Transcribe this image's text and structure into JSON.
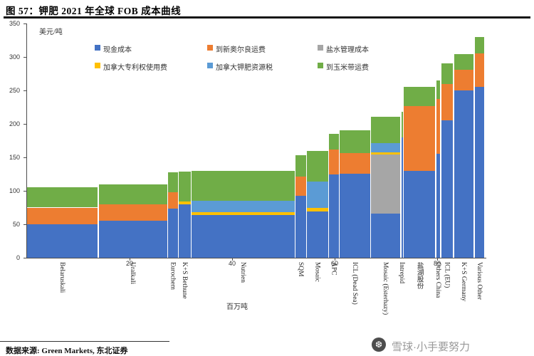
{
  "page": {
    "title": "图 57：钾肥 2021 年全球 FOB 成本曲线",
    "source_note": "数据来源: Green Markets, 东北证券",
    "watermark_text": "雪球·小手要努力",
    "watermark_icon": "snowball-logo"
  },
  "chart_data": {
    "type": "bar",
    "subtype": "stacked-variable-width-cost-curve",
    "title": "钾肥2021年全球FOB成本曲线",
    "ylabel": "美元/吨",
    "xlabel": "百万吨",
    "ylim": [
      0,
      350
    ],
    "yticks": [
      0,
      50,
      100,
      150,
      200,
      250,
      300,
      350
    ],
    "xticks": [
      20,
      40,
      60,
      80
    ],
    "grid": false,
    "legend_position": "top-center",
    "legend": [
      {
        "id": "cash",
        "label": "现金成本",
        "color": "#4472C4"
      },
      {
        "id": "nola",
        "label": "到新奥尔良运费",
        "color": "#ED7D31"
      },
      {
        "id": "brine",
        "label": "盐水管理成本",
        "color": "#A6A6A6"
      },
      {
        "id": "royalty",
        "label": "加拿大专利权使用费",
        "color": "#FFC000"
      },
      {
        "id": "tax",
        "label": "加拿大钾肥资源税",
        "color": "#5B9BD5"
      },
      {
        "id": "corn",
        "label": "到玉米带运费",
        "color": "#70AD47"
      }
    ],
    "bars": [
      {
        "label": "Belaruskali",
        "width_mt": 14.0,
        "total": 105,
        "segments": [
          {
            "type": "cash",
            "value": 50
          },
          {
            "type": "nola",
            "value": 25
          },
          {
            "type": "corn",
            "value": 30
          }
        ]
      },
      {
        "label": "Uralkali",
        "width_mt": 13.5,
        "total": 110,
        "segments": [
          {
            "type": "cash",
            "value": 55
          },
          {
            "type": "nola",
            "value": 25
          },
          {
            "type": "corn",
            "value": 30
          }
        ]
      },
      {
        "label": "Eurochem",
        "width_mt": 2.1,
        "total": 128,
        "segments": [
          {
            "type": "cash",
            "value": 73
          },
          {
            "type": "nola",
            "value": 25
          },
          {
            "type": "corn",
            "value": 30
          }
        ]
      },
      {
        "label": "K+S Bethune",
        "width_mt": 2.5,
        "total": 129,
        "segments": [
          {
            "type": "cash",
            "value": 80
          },
          {
            "type": "royalty",
            "value": 4
          },
          {
            "type": "corn",
            "value": 45
          }
        ]
      },
      {
        "label": "Nutrien",
        "width_mt": 20.3,
        "total": 130,
        "segments": [
          {
            "type": "cash",
            "value": 64
          },
          {
            "type": "royalty",
            "value": 4
          },
          {
            "type": "tax",
            "value": 17
          },
          {
            "type": "corn",
            "value": 45
          }
        ]
      },
      {
        "label": "SQM",
        "width_mt": 2.2,
        "total": 153,
        "segments": [
          {
            "type": "cash",
            "value": 93
          },
          {
            "type": "nola",
            "value": 28
          },
          {
            "type": "corn",
            "value": 32
          }
        ]
      },
      {
        "label": "Mosaic",
        "width_mt": 4.3,
        "total": 160,
        "segments": [
          {
            "type": "cash",
            "value": 69
          },
          {
            "type": "royalty",
            "value": 5
          },
          {
            "type": "tax",
            "value": 40
          },
          {
            "type": "corn",
            "value": 46
          }
        ]
      },
      {
        "label": "APC",
        "width_mt": 2.1,
        "total": 185,
        "segments": [
          {
            "type": "cash",
            "value": 124
          },
          {
            "type": "nola",
            "value": 38
          },
          {
            "type": "corn",
            "value": 23
          }
        ]
      },
      {
        "label": "ICL (Dead Sea)",
        "width_mt": 6.1,
        "total": 190,
        "segments": [
          {
            "type": "cash",
            "value": 126
          },
          {
            "type": "nola",
            "value": 30
          },
          {
            "type": "corn",
            "value": 34
          }
        ]
      },
      {
        "label": "Mosaic (Esterhazy)",
        "width_mt": 5.9,
        "total": 211,
        "segments": [
          {
            "type": "cash",
            "value": 66
          },
          {
            "type": "brine",
            "value": 88
          },
          {
            "type": "royalty",
            "value": 3
          },
          {
            "type": "tax",
            "value": 14
          },
          {
            "type": "corn",
            "value": 40
          }
        ]
      },
      {
        "label": "Intrepid",
        "width_mt": 0.5,
        "total": 218,
        "segments": [
          {
            "type": "cash",
            "value": 180
          },
          {
            "type": "corn",
            "value": 38
          }
        ]
      },
      {
        "label": "盐湖股份",
        "width_mt": 6.3,
        "total": 255,
        "segments": [
          {
            "type": "cash",
            "value": 130
          },
          {
            "type": "nola",
            "value": 97
          },
          {
            "type": "corn",
            "value": 28
          }
        ]
      },
      {
        "label": "Others China",
        "width_mt": 1.0,
        "total": 265,
        "segments": [
          {
            "type": "cash",
            "value": 155
          },
          {
            "type": "nola",
            "value": 82
          },
          {
            "type": "corn",
            "value": 28
          }
        ]
      },
      {
        "label": "ICL (EU)",
        "width_mt": 2.5,
        "total": 290,
        "segments": [
          {
            "type": "cash",
            "value": 205
          },
          {
            "type": "nola",
            "value": 55
          },
          {
            "type": "corn",
            "value": 30
          }
        ]
      },
      {
        "label": "K+S Germany",
        "width_mt": 4.0,
        "total": 304,
        "segments": [
          {
            "type": "cash",
            "value": 250
          },
          {
            "type": "nola",
            "value": 31
          },
          {
            "type": "corn",
            "value": 23
          }
        ]
      },
      {
        "label": "Various Other",
        "width_mt": 2.1,
        "total": 330,
        "segments": [
          {
            "type": "cash",
            "value": 255
          },
          {
            "type": "nola",
            "value": 50
          },
          {
            "type": "corn",
            "value": 25
          }
        ]
      }
    ]
  }
}
